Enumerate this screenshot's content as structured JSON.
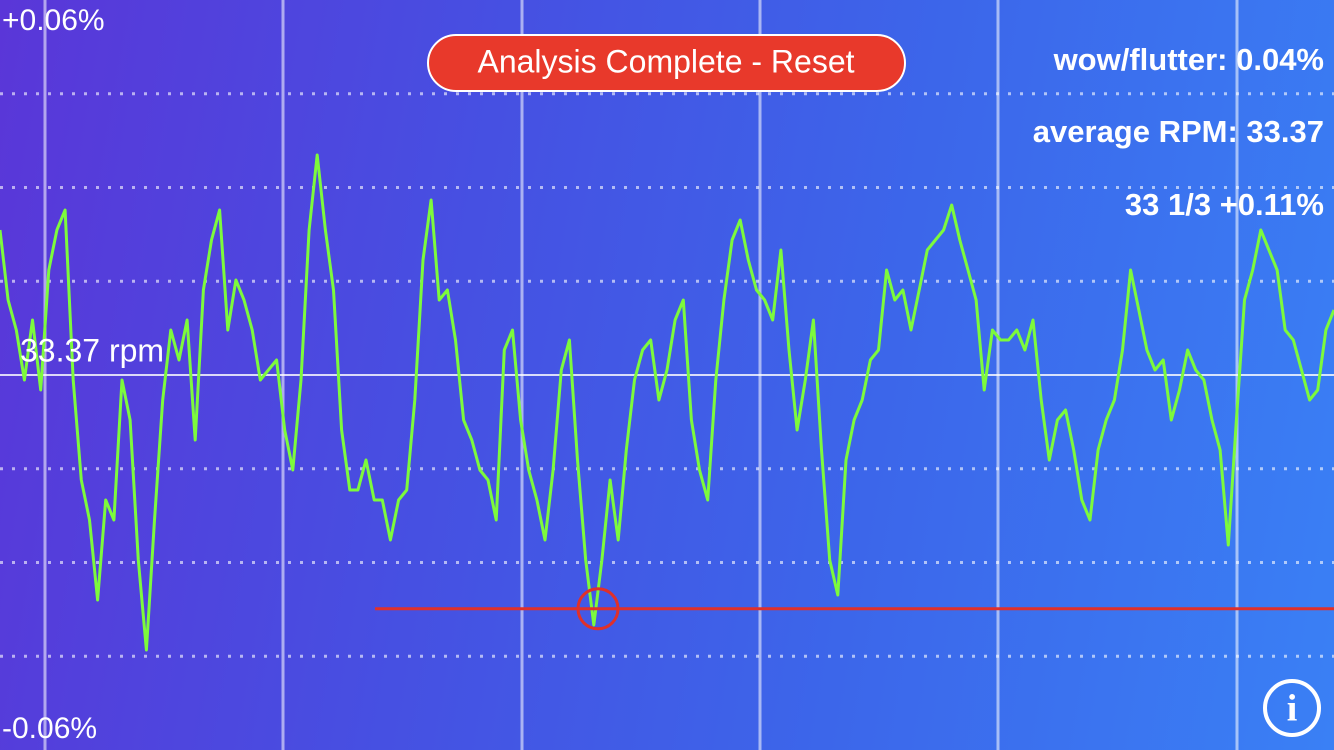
{
  "chart_data": {
    "type": "line",
    "ylim": [
      -0.06,
      0.06
    ],
    "yticks": [
      {
        "value": 0.06,
        "label": "+0.06%"
      },
      {
        "value": 0,
        "label": "33.37 rpm"
      },
      {
        "value": -0.06,
        "label": "-0.06%"
      }
    ],
    "color": "#7dfa3c",
    "marker_value": -0.0374,
    "values": [
      0.0232,
      0.012,
      0.0072,
      -0.0008,
      0.0088,
      -0.0024,
      0.0168,
      0.0232,
      0.0264,
      -0.0008,
      -0.0168,
      -0.0232,
      -0.036,
      -0.02,
      -0.0232,
      -0.0008,
      -0.0072,
      -0.0296,
      -0.044,
      -0.0232,
      -0.004,
      0.0072,
      0.0024,
      0.0088,
      -0.0104,
      0.0136,
      0.0216,
      0.0264,
      0.0072,
      0.0152,
      0.012,
      0.0072,
      -0.0008,
      0.0008,
      0.0024,
      -0.0088,
      -0.0152,
      -0.0008,
      0.0232,
      0.0352,
      0.0232,
      0.0136,
      -0.0088,
      -0.0184,
      -0.0184,
      -0.0136,
      -0.02,
      -0.02,
      -0.0264,
      -0.02,
      -0.0184,
      -0.004,
      0.0184,
      0.028,
      0.012,
      0.0136,
      0.0056,
      -0.0072,
      -0.0104,
      -0.0152,
      -0.0168,
      -0.0232,
      0.004,
      0.0072,
      -0.0072,
      -0.0152,
      -0.02,
      -0.0264,
      -0.0152,
      0.0008,
      0.0056,
      -0.0136,
      -0.0296,
      -0.04,
      -0.0296,
      -0.0168,
      -0.0264,
      -0.012,
      -0.0008,
      0.004,
      0.0056,
      -0.004,
      0.0008,
      0.0088,
      0.012,
      -0.0072,
      -0.0152,
      -0.02,
      -0.0008,
      0.012,
      0.0216,
      0.0248,
      0.0184,
      0.0136,
      0.012,
      0.0088,
      0.02,
      0.004,
      -0.0088,
      -0.0008,
      0.0088,
      -0.012,
      -0.0296,
      -0.0352,
      -0.0136,
      -0.0072,
      -0.004,
      0.0024,
      0.004,
      0.0168,
      0.012,
      0.0136,
      0.0072,
      0.0136,
      0.02,
      0.0216,
      0.0232,
      0.0272,
      0.0216,
      0.0168,
      0.012,
      -0.0024,
      0.0072,
      0.0056,
      0.0056,
      0.0072,
      0.004,
      0.0088,
      -0.004,
      -0.0136,
      -0.0072,
      -0.0056,
      -0.012,
      -0.02,
      -0.0232,
      -0.012,
      -0.0072,
      -0.004,
      0.004,
      0.0168,
      0.0104,
      0.004,
      0.0008,
      0.0024,
      -0.0072,
      -0.0024,
      0.004,
      0.0008,
      -0.0008,
      -0.0072,
      -0.012,
      -0.0272,
      -0.0072,
      0.012,
      0.0168,
      0.0232,
      0.02,
      0.0168,
      0.0072,
      0.0056,
      0.0008,
      -0.004,
      -0.0024,
      0.0072,
      0.0104
    ]
  },
  "ui": {
    "button": "Analysis Complete - Reset",
    "stats": [
      "wow/flutter:  0.04%",
      "average RPM:  33.37",
      "33 1/3 +0.11%"
    ],
    "info": "i"
  }
}
